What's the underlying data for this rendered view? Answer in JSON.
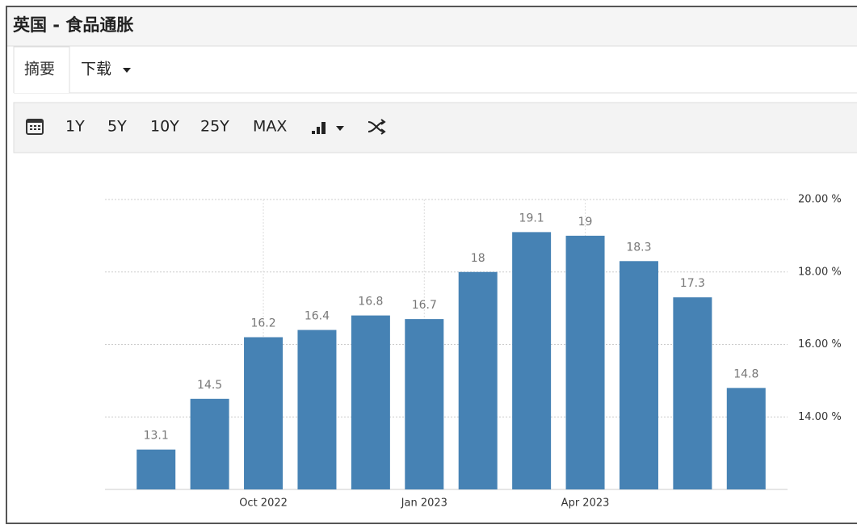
{
  "header": {
    "title": "英国 - 食品通胀"
  },
  "tabs": [
    "摘要",
    "下载"
  ],
  "toolbar": {
    "ranges": [
      "1Y",
      "5Y",
      "10Y",
      "25Y",
      "MAX"
    ]
  },
  "chart_data": {
    "type": "bar",
    "categories": [
      null,
      null,
      "Oct 2022",
      null,
      null,
      "Jan 2023",
      null,
      null,
      "Apr 2023",
      null,
      null,
      null
    ],
    "values": [
      13.1,
      14.5,
      16.2,
      16.4,
      16.8,
      16.7,
      18,
      19.1,
      19,
      18.3,
      17.3,
      14.8
    ],
    "color": "#4682b4",
    "ylim": [
      12,
      20
    ],
    "yticks": [
      {
        "value": 14,
        "label": "14.00 %"
      },
      {
        "value": 16,
        "label": "16.00 %"
      },
      {
        "value": 18,
        "label": "18.00 %"
      },
      {
        "value": 20,
        "label": "20.00 %"
      }
    ],
    "grid": true
  }
}
